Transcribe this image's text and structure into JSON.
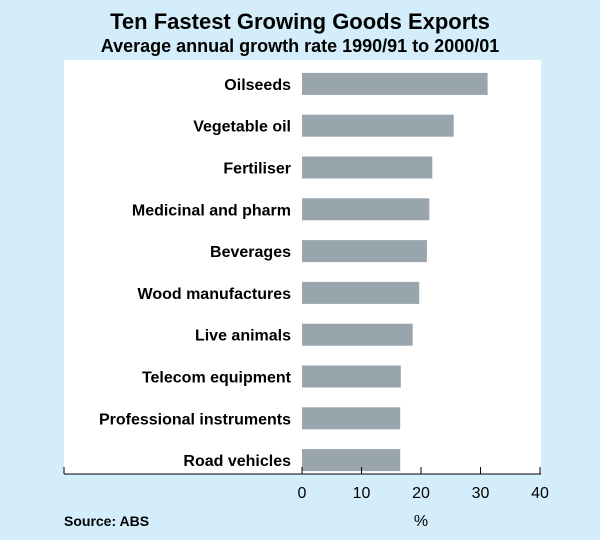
{
  "chart_data": {
    "type": "bar",
    "orientation": "horizontal",
    "title": "Ten Fastest Growing Goods Exports",
    "subtitle": "Average annual growth rate 1990/91 to 2000/01",
    "categories": [
      "Oilseeds",
      "Vegetable oil",
      "Fertiliser",
      "Medicinal and pharm",
      "Beverages",
      "Wood manufactures",
      "Live animals",
      "Telecom equipment",
      "Professional instruments",
      "Road vehicles"
    ],
    "values": [
      31.2,
      25.5,
      21.9,
      21.4,
      21.0,
      19.7,
      18.6,
      16.6,
      16.5,
      16.5
    ],
    "xlabel": "%",
    "xlim": [
      0,
      40
    ],
    "xticks": [
      0,
      10,
      20,
      30,
      40
    ],
    "bar_color": "#98a5ad",
    "grid": false,
    "source": "Source: ABS"
  }
}
